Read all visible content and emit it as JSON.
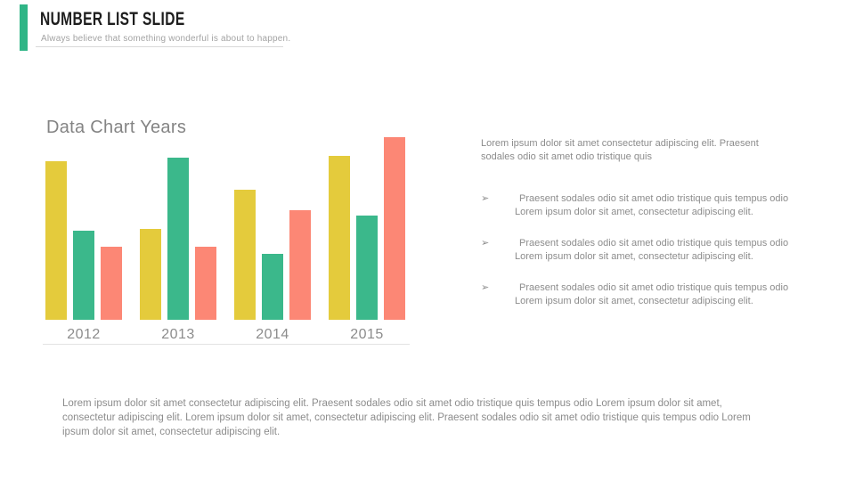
{
  "accent_color": "#2fb586",
  "header": {
    "title": "NUMBER LIST SLIDE",
    "subtitle": "Always believe that something wonderful is about to happen."
  },
  "chart_data": {
    "type": "bar",
    "title": "Data Chart Years",
    "categories": [
      "2012",
      "2013",
      "2014",
      "2015"
    ],
    "series": [
      {
        "name": "yellow",
        "color": "#e4cb3c",
        "values": [
          8.7,
          5.0,
          7.1,
          9.0
        ]
      },
      {
        "name": "green",
        "color": "#3bb88b",
        "values": [
          4.9,
          8.9,
          3.6,
          5.7
        ]
      },
      {
        "name": "salmon",
        "color": "#fc8775",
        "values": [
          4.0,
          4.0,
          6.0,
          10.0
        ]
      }
    ],
    "ylim": [
      0,
      10
    ],
    "xlabel": "",
    "ylabel": "",
    "grid": false,
    "legend": false
  },
  "right_column": {
    "intro": "Lorem ipsum dolor sit amet consectetur adipiscing elit. Praesent sodales odio sit amet odio tristique quis",
    "bullet_marker": "➢",
    "bullets": [
      "Praesent sodales odio sit amet odio tristique quis tempus odio Lorem ipsum dolor sit amet, consectetur adipiscing elit.",
      "Praesent sodales odio sit amet odio tristique quis tempus odio Lorem ipsum dolor sit amet, consectetur adipiscing elit.",
      "Praesent sodales odio sit amet odio tristique quis tempus odio Lorem ipsum dolor sit amet, consectetur adipiscing elit."
    ]
  },
  "footer": {
    "paragraph": "Lorem ipsum dolor sit amet consectetur adipiscing elit. Praesent sodales odio sit amet odio tristique quis tempus odio Lorem ipsum dolor sit amet, consectetur adipiscing elit. Lorem ipsum dolor sit amet, consectetur adipiscing elit. Praesent sodales odio sit amet odio tristique quis tempus odio Lorem ipsum dolor sit amet, consectetur adipiscing elit."
  }
}
